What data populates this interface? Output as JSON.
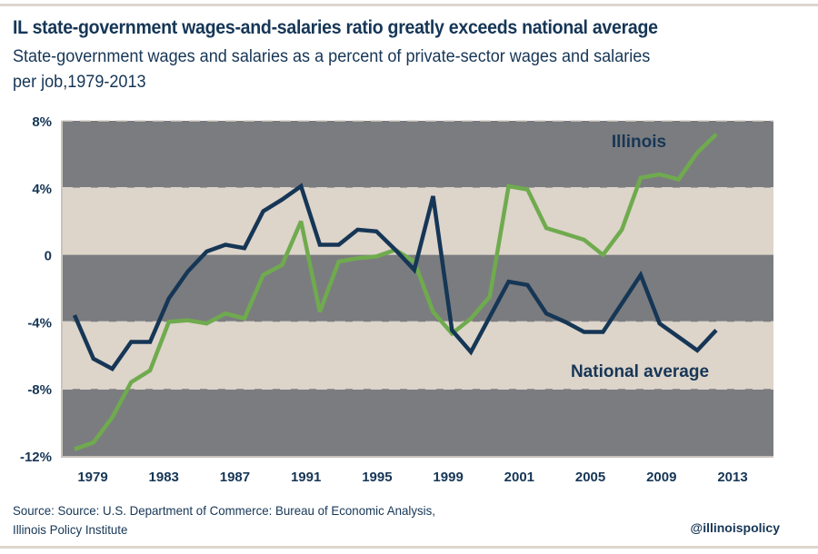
{
  "header": {
    "title": "IL state-government wages-and-salaries ratio greatly exceeds national average",
    "subtitle_line1": "State-government wages and salaries as a percent of private-sector wages and salaries",
    "subtitle_line2": "per job,1979-2013"
  },
  "footer": {
    "source_line1": "Source: Source: U.S. Department of Commerce: Bureau of Economic Analysis,",
    "source_line2": "Illinois Policy Institute",
    "handle": "@illinoispolicy"
  },
  "colors": {
    "band_dark": "#7b7c7f",
    "band_light": "#ddd4ca",
    "illinois": "#6fab4e",
    "national": "#163656",
    "text": "#163656",
    "gridline": "#d9d2ca"
  },
  "chart_data": {
    "type": "line",
    "title": "IL state-government wages-and-salaries ratio greatly exceeds national average",
    "subtitle": "State-government wages and salaries as a percent of private-sector wages and salaries per job,1979-2013",
    "xlabel": "",
    "ylabel": "",
    "ylim": [
      -12,
      8
    ],
    "yticks": [
      8,
      4,
      0,
      -4,
      -8,
      -12
    ],
    "ytick_labels": [
      "8%",
      "4%",
      "0",
      "-4%",
      "-8%",
      "-12%"
    ],
    "xtick_labels": [
      "1979",
      "1983",
      "1987",
      "1991",
      "1995",
      "1999",
      "2001",
      "2005",
      "2009",
      "2013"
    ],
    "grid": true,
    "legend": "inline labels (Illinois top-right, National average bottom-right)",
    "x": [
      1979,
      1980,
      1981,
      1982,
      1983,
      1984,
      1985,
      1986,
      1987,
      1988,
      1989,
      1990,
      1991,
      1992,
      1993,
      1994,
      1995,
      1996,
      1997,
      1998,
      1999,
      2000,
      2001,
      2002,
      2003,
      2004,
      2005,
      2006,
      2007,
      2008,
      2009,
      2010,
      2011,
      2012,
      2013
    ],
    "series": [
      {
        "name": "Illinois",
        "color": "#6fab4e",
        "values": [
          -11.6,
          -11.2,
          -9.7,
          -7.6,
          -6.9,
          -4.0,
          -3.9,
          -4.1,
          -3.5,
          -3.8,
          -1.2,
          -0.6,
          2.0,
          -3.4,
          -0.4,
          -0.2,
          -0.1,
          0.3,
          -0.4,
          -3.4,
          -4.7,
          -3.8,
          -2.5,
          4.1,
          3.9,
          1.6,
          1.25,
          0.9,
          0.0,
          1.5,
          4.6,
          4.8,
          4.5,
          6.1,
          7.2
        ]
      },
      {
        "name": "National average",
        "color": "#163656",
        "values": [
          -3.6,
          -6.2,
          -6.8,
          -5.2,
          -5.2,
          -2.6,
          -1.0,
          0.2,
          0.6,
          0.4,
          2.6,
          3.3,
          4.1,
          0.6,
          0.6,
          1.5,
          1.4,
          0.3,
          -0.9,
          3.5,
          -4.5,
          -5.8,
          -3.7,
          -1.6,
          -1.8,
          -3.5,
          -4.0,
          -4.6,
          -4.6,
          -2.9,
          -1.2,
          -4.1,
          -4.9,
          -5.7,
          -4.5
        ]
      }
    ]
  }
}
